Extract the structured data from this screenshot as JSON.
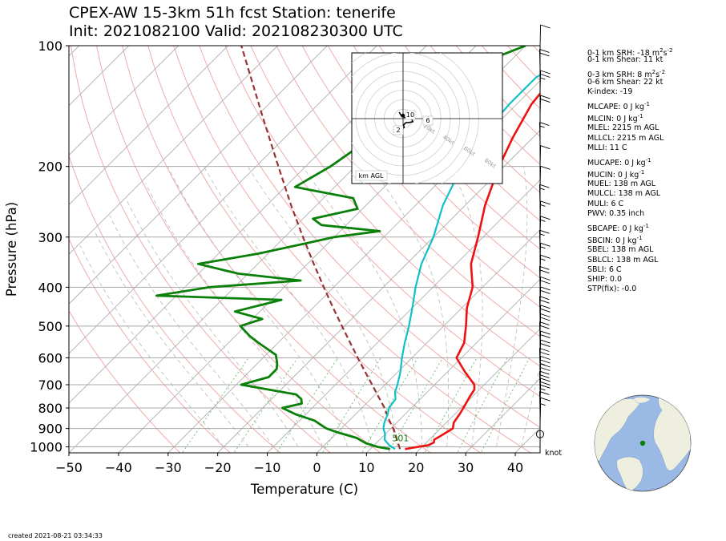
{
  "title": {
    "line1": "CPEX-AW 15-3km  51h fcst  Station: tenerife",
    "line2": "Init: 2021082100  Valid: 202108230300 UTC"
  },
  "footer": {
    "created": "created 2021-08-21 03:34:33"
  },
  "wind_unit": "knot",
  "hodograph": {
    "label": "km AGL",
    "ring_labels": [
      "20kt",
      "40kt",
      "60kt",
      "80kt"
    ],
    "height_labels": [
      "10",
      "6",
      "2"
    ]
  },
  "params": [
    {
      "text": "0-1 km SRH: -18 m",
      "sup": "2",
      "post": "s",
      "sup2": "-2"
    },
    {
      "text": "0-1 km Shear: 11 kt"
    },
    {
      "text": "0-3 km SRH: 8 m",
      "sup": "2",
      "post": "s",
      "sup2": "-2"
    },
    {
      "text": "0-6 km Shear: 22 kt"
    },
    {
      "text": "K-index: -19"
    },
    {
      "text": "MLCAPE: 0 J kg",
      "sup": "-1"
    },
    {
      "text": "MLCIN: 0 J kg",
      "sup": "-1"
    },
    {
      "text": "MLEL: 2215 m AGL"
    },
    {
      "text": "MLLCL: 2215 m AGL"
    },
    {
      "text": "MLLI: 11 C"
    },
    {
      "text": "MUCAPE: 0 J kg",
      "sup": "-1"
    },
    {
      "text": "MUCIN: 0 J kg",
      "sup": "-1"
    },
    {
      "text": "MUEL: 138 m AGL"
    },
    {
      "text": "MULCL: 138 m AGL"
    },
    {
      "text": "MULI: 6 C"
    },
    {
      "text": "PWV: 0.35 inch"
    },
    {
      "text": "SBCAPE: 0 J kg",
      "sup": "-1"
    },
    {
      "text": "SBCIN: 0 J kg",
      "sup": "-1"
    },
    {
      "text": "SBEL: 138 m AGL"
    },
    {
      "text": "SBLCL: 138 m AGL"
    },
    {
      "text": "SBLI: 6 C"
    },
    {
      "text": "SHIP: 0.0"
    },
    {
      "text": "STP(fix): -0.0"
    }
  ],
  "colors": {
    "temperature": "#ee1111",
    "dewpoint": "#0a800a",
    "wetbulb": "#10c0c8",
    "parcel": "#993333",
    "isotherm": "#b0b0b0",
    "dry_adiabat": "#f2aaaa",
    "moist_adiabat": "#b8b8b8",
    "mixing_ratio": "#66bb66",
    "map_ocean": "#9ab9e4",
    "map_land": "#efefdf",
    "station": "#0a800a"
  },
  "chart_data": {
    "type": "skew-t log-p",
    "xlabel": "Temperature (C)",
    "ylabel": "Pressure (hPa)",
    "xlim": [
      -50,
      45
    ],
    "ylim": [
      1035,
      100
    ],
    "log_y": true,
    "x_ticks": [
      -50,
      -40,
      -30,
      -20,
      -10,
      0,
      10,
      20,
      30,
      40
    ],
    "y_ticks": [
      100,
      200,
      300,
      400,
      500,
      600,
      700,
      800,
      900,
      1000
    ],
    "surface_label": "501",
    "series": [
      {
        "key": "temperature",
        "points": [
          [
            1013,
            17
          ],
          [
            990,
            21
          ],
          [
            975,
            21.5
          ],
          [
            960,
            21
          ],
          [
            940,
            21.5
          ],
          [
            920,
            22
          ],
          [
            900,
            22.5
          ],
          [
            870,
            21.5
          ],
          [
            830,
            21
          ],
          [
            800,
            20.5
          ],
          [
            750,
            19.5
          ],
          [
            720,
            19
          ],
          [
            700,
            18
          ],
          [
            650,
            13.5
          ],
          [
            600,
            9
          ],
          [
            550,
            7.5
          ],
          [
            500,
            4.5
          ],
          [
            450,
            1
          ],
          [
            400,
            -2
          ],
          [
            350,
            -7
          ],
          [
            300,
            -11
          ],
          [
            250,
            -16
          ],
          [
            200,
            -21
          ],
          [
            170,
            -24
          ],
          [
            140,
            -27
          ],
          [
            120,
            -28
          ],
          [
            100,
            -24
          ]
        ]
      },
      {
        "key": "wetbulb",
        "points": [
          [
            1013,
            15
          ],
          [
            990,
            13
          ],
          [
            960,
            11
          ],
          [
            930,
            10
          ],
          [
            900,
            8.5
          ],
          [
            870,
            7.5
          ],
          [
            830,
            6.5
          ],
          [
            800,
            5.5
          ],
          [
            760,
            5
          ],
          [
            730,
            3.5
          ],
          [
            700,
            2.5
          ],
          [
            650,
            0.5
          ],
          [
            600,
            -2
          ],
          [
            550,
            -4.5
          ],
          [
            500,
            -7
          ],
          [
            450,
            -10
          ],
          [
            400,
            -13.5
          ],
          [
            350,
            -17
          ],
          [
            300,
            -20
          ],
          [
            250,
            -24.5
          ],
          [
            200,
            -28.5
          ],
          [
            170,
            -30.5
          ],
          [
            140,
            -31.5
          ],
          [
            120,
            -31.5
          ],
          [
            100,
            -27
          ]
        ]
      },
      {
        "key": "dewpoint",
        "points": [
          [
            1013,
            14
          ],
          [
            1000,
            11
          ],
          [
            980,
            8
          ],
          [
            950,
            5
          ],
          [
            920,
            0
          ],
          [
            900,
            -3
          ],
          [
            880,
            -5
          ],
          [
            860,
            -7
          ],
          [
            830,
            -12
          ],
          [
            800,
            -16
          ],
          [
            780,
            -13
          ],
          [
            760,
            -14
          ],
          [
            740,
            -16
          ],
          [
            700,
            -29
          ],
          [
            670,
            -25
          ],
          [
            640,
            -25
          ],
          [
            620,
            -26
          ],
          [
            590,
            -28
          ],
          [
            550,
            -34
          ],
          [
            530,
            -37
          ],
          [
            500,
            -41
          ],
          [
            480,
            -38
          ],
          [
            460,
            -45
          ],
          [
            430,
            -38
          ],
          [
            420,
            -64
          ],
          [
            400,
            -55
          ],
          [
            385,
            -38
          ],
          [
            370,
            -52
          ],
          [
            350,
            -62
          ],
          [
            330,
            -52
          ],
          [
            310,
            -44
          ],
          [
            300,
            -40
          ],
          [
            290,
            -32
          ],
          [
            280,
            -45
          ],
          [
            270,
            -48
          ],
          [
            255,
            -41
          ],
          [
            240,
            -44
          ],
          [
            225,
            -58
          ],
          [
            200,
            -55
          ],
          [
            175,
            -53
          ],
          [
            160,
            -54
          ],
          [
            140,
            -52
          ],
          [
            120,
            -50
          ],
          [
            100,
            -40
          ]
        ]
      },
      {
        "key": "parcel",
        "points": [
          [
            1013,
            16
          ],
          [
            900,
            10.5
          ],
          [
            850,
            7.5
          ],
          [
            800,
            4.6
          ],
          [
            750,
            1.1
          ],
          [
            700,
            -2.6
          ],
          [
            650,
            -6.6
          ],
          [
            600,
            -10.9
          ],
          [
            550,
            -15.5
          ],
          [
            500,
            -20.5
          ],
          [
            450,
            -26
          ],
          [
            400,
            -32
          ],
          [
            350,
            -38.7
          ],
          [
            300,
            -46.3
          ],
          [
            250,
            -55.1
          ],
          [
            200,
            -65.5
          ],
          [
            150,
            -78.8
          ],
          [
            100,
            -97.3
          ]
        ]
      }
    ],
    "wind_barbs": [
      {
        "p": 930,
        "speed": 0
      },
      {
        "p": 880,
        "speed": 5
      },
      {
        "p": 850,
        "speed": 10
      },
      {
        "p": 820,
        "speed": 10
      },
      {
        "p": 790,
        "speed": 15
      },
      {
        "p": 760,
        "speed": 20
      },
      {
        "p": 730,
        "speed": 20
      },
      {
        "p": 700,
        "speed": 20
      },
      {
        "p": 670,
        "speed": 25
      },
      {
        "p": 640,
        "speed": 20
      },
      {
        "p": 610,
        "speed": 20
      },
      {
        "p": 580,
        "speed": 20
      },
      {
        "p": 550,
        "speed": 20
      },
      {
        "p": 525,
        "speed": 20
      },
      {
        "p": 500,
        "speed": 20
      },
      {
        "p": 475,
        "speed": 20
      },
      {
        "p": 450,
        "speed": 20
      },
      {
        "p": 425,
        "speed": 20
      },
      {
        "p": 400,
        "speed": 20
      },
      {
        "p": 375,
        "speed": 15
      },
      {
        "p": 350,
        "speed": 15
      },
      {
        "p": 325,
        "speed": 15
      },
      {
        "p": 300,
        "speed": 15
      },
      {
        "p": 275,
        "speed": 15
      },
      {
        "p": 250,
        "speed": 15
      },
      {
        "p": 225,
        "speed": 10
      },
      {
        "p": 200,
        "speed": 10
      },
      {
        "p": 175,
        "speed": 15
      },
      {
        "p": 150,
        "speed": 20
      },
      {
        "p": 130,
        "speed": 25
      },
      {
        "p": 115,
        "speed": 20
      },
      {
        "p": 100,
        "speed": 10
      }
    ],
    "hodograph_points": [
      [
        -1.5,
        2.5
      ],
      [
        -0.5,
        0.8
      ],
      [
        1,
        0.4
      ],
      [
        3,
        0.5
      ],
      [
        3.5,
        -0.5
      ],
      [
        3.8,
        -1.2
      ],
      [
        2.5,
        -1.5
      ],
      [
        1,
        -1.6
      ],
      [
        0.2,
        -2.5
      ],
      [
        0.4,
        -3.5
      ],
      [
        -1.5,
        -4.5
      ],
      [
        -2.5,
        -3.2
      ]
    ]
  }
}
